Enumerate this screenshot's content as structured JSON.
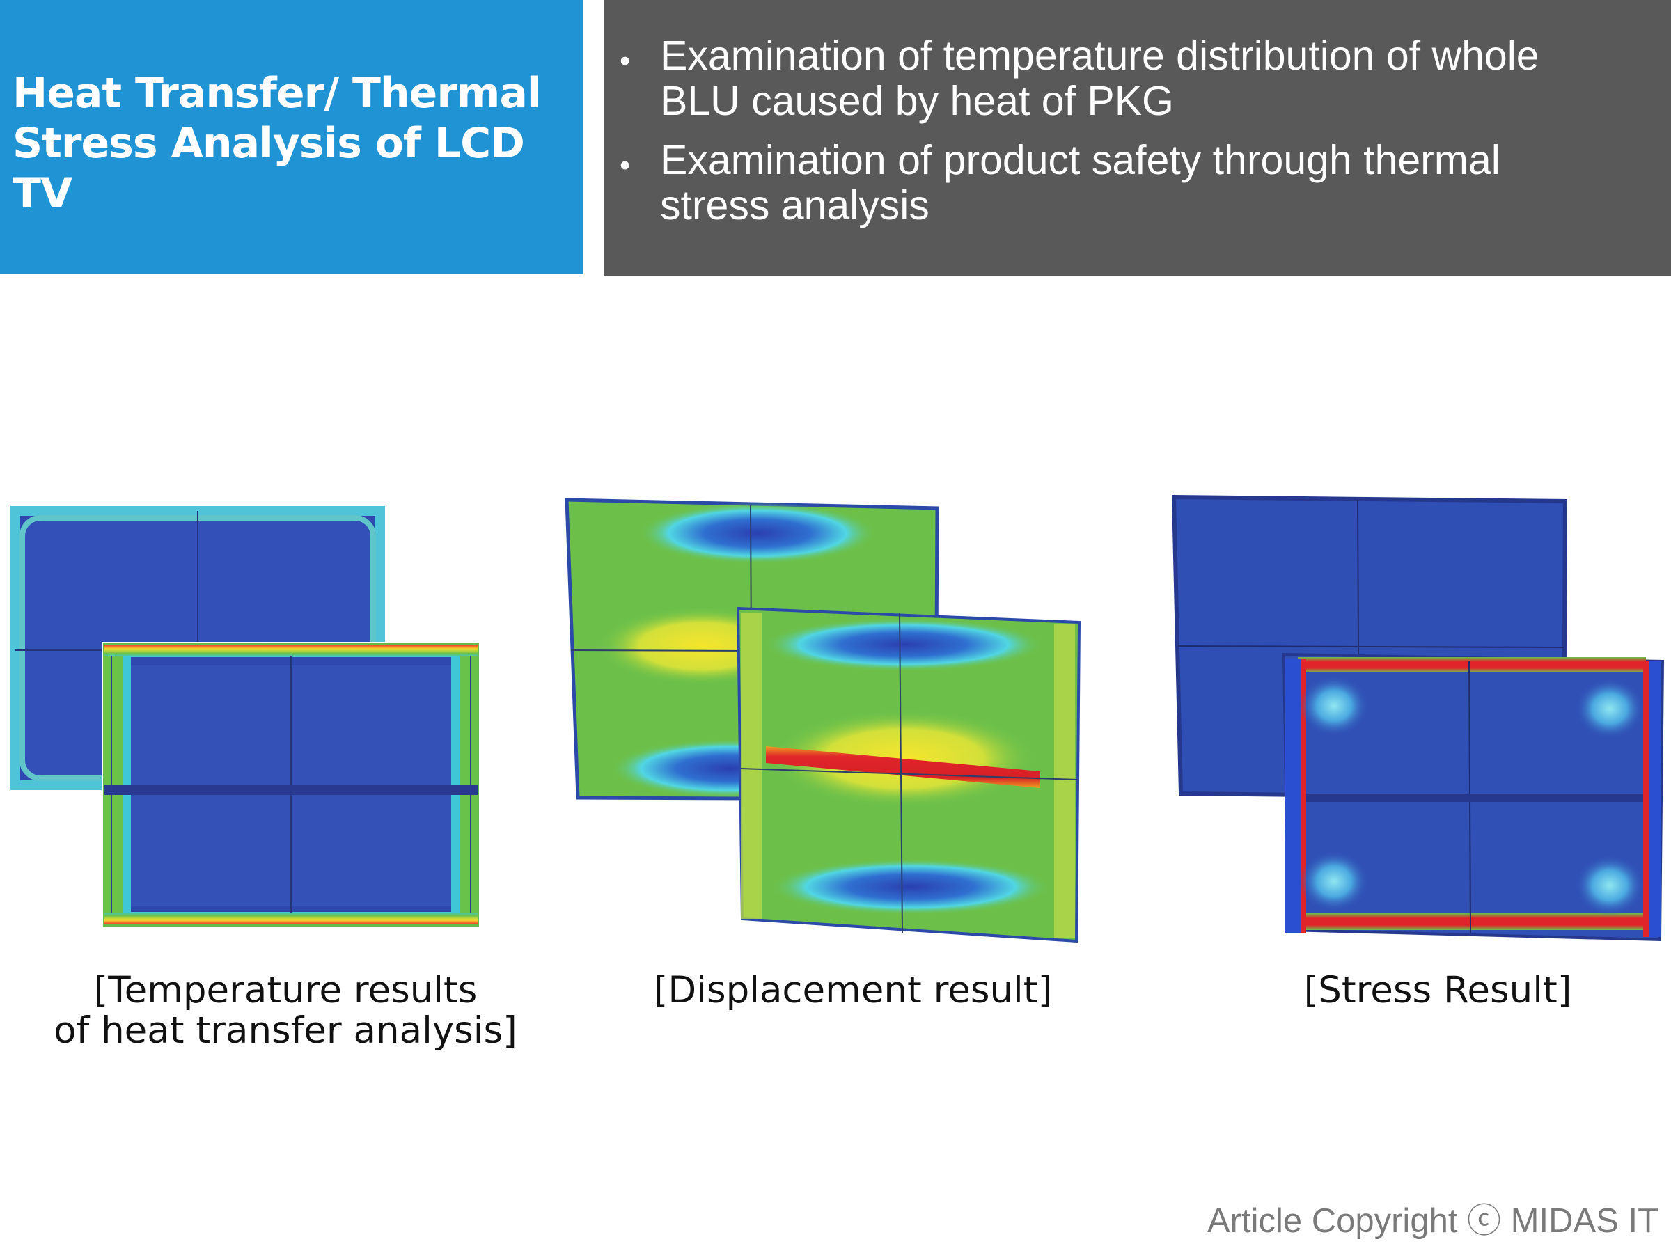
{
  "header": {
    "title_line1": "Heat Transfer/ Thermal",
    "title_line2": "Stress Analysis of LCD TV",
    "bullets": [
      {
        "line1": "Examination of temperature distribution of whole",
        "line2": "BLU caused by heat of PKG"
      },
      {
        "line1": "Examination of product safety through thermal",
        "line2": "stress analysis"
      }
    ]
  },
  "figures": [
    {
      "caption_line1": "[Temperature results",
      "caption_line2": "of heat transfer analysis]"
    },
    {
      "caption_line1": "[Displacement result]"
    },
    {
      "caption_line1": "[Stress Result]"
    }
  ],
  "footer": {
    "copyright": "Article Copyright ⓒ MIDAS IT"
  },
  "colors": {
    "title_bg": "#1f93d3",
    "bullets_bg": "#5a595a",
    "fea_blue": "#2e4fb3",
    "fea_green": "#6cc04a",
    "fea_red": "#e0252a",
    "fea_yellow": "#f2e52c"
  }
}
